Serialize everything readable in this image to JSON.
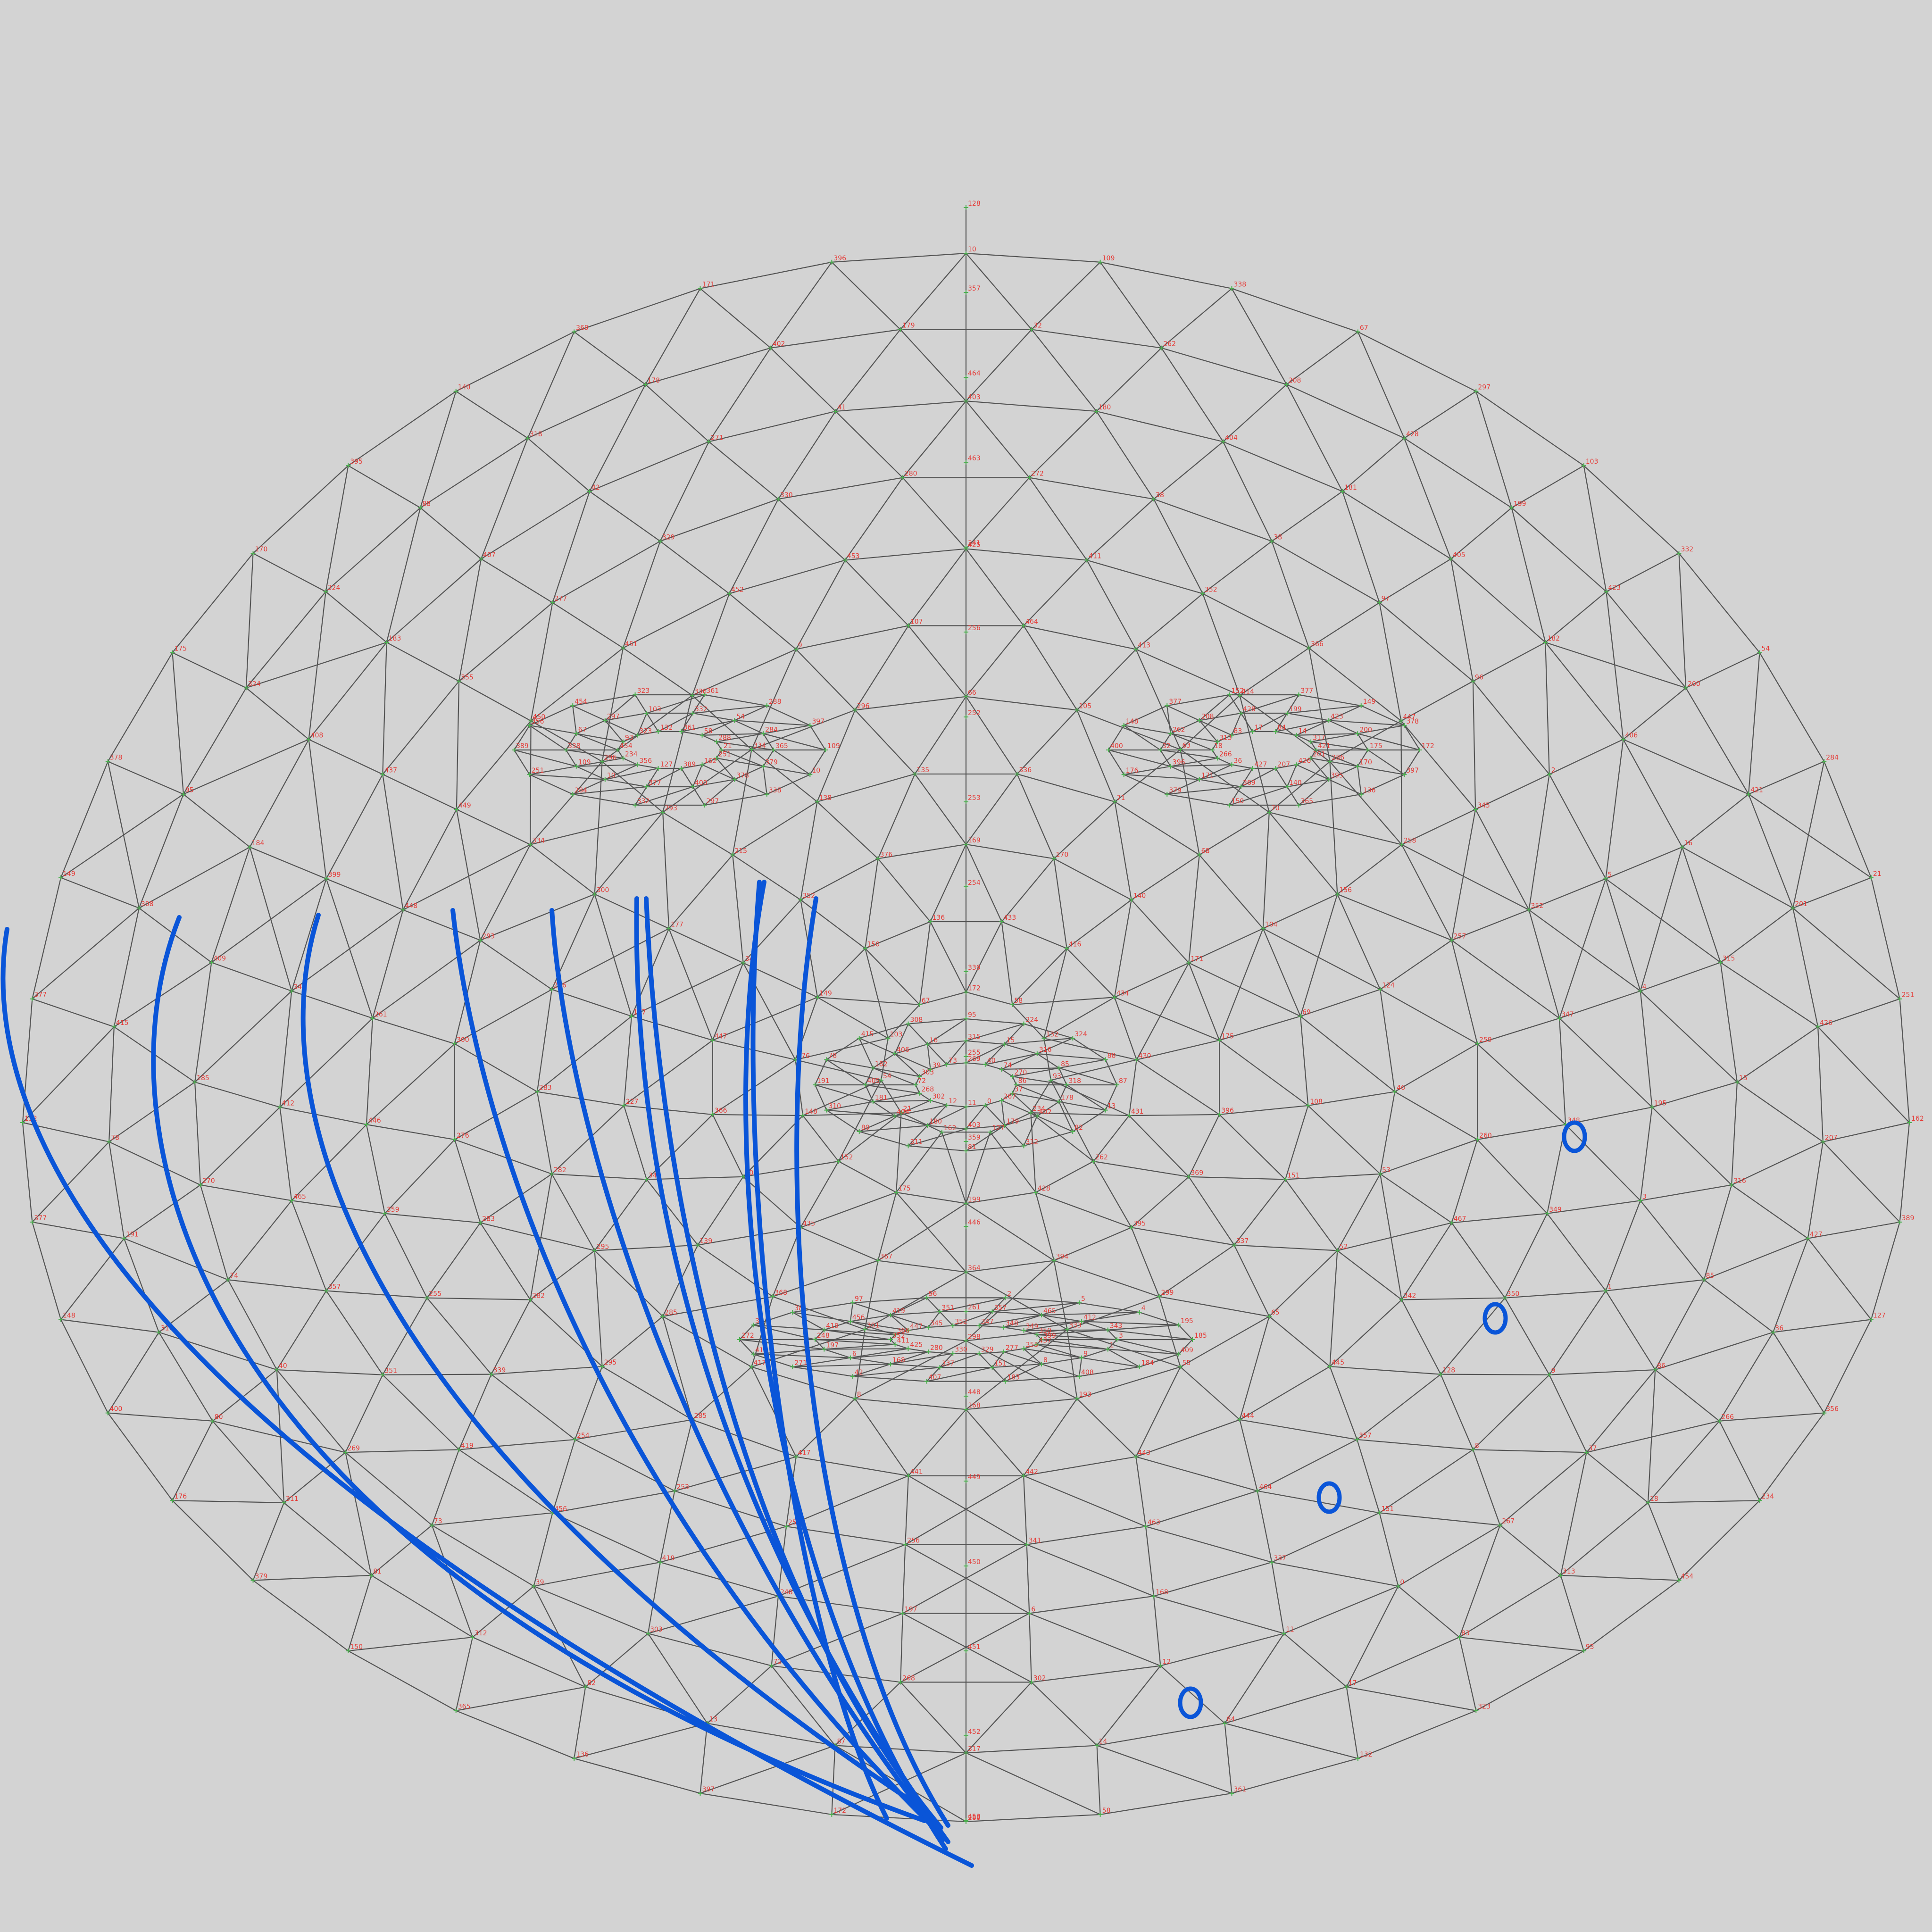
{
  "colors": {
    "background": "#d3d3d3",
    "mesh": "#555555",
    "label": "#e53935",
    "node": "#4caf50",
    "annotation": "#0a55d8"
  },
  "mesh": {
    "labels": [
      "10",
      "109",
      "338",
      "67",
      "297",
      "103",
      "332",
      "54",
      "284",
      "21",
      "251",
      "162",
      "389",
      "127",
      "356",
      "234",
      "454",
      "93",
      "323",
      "132",
      "361",
      "58",
      "288",
      "172",
      "397",
      "136",
      "365",
      "150",
      "379",
      "176",
      "400",
      "148",
      "377",
      "152",
      "377",
      "149",
      "378",
      "175",
      "170",
      "395",
      "140",
      "369",
      "171",
      "396",
      "32",
      "262",
      "208",
      "428",
      "199",
      "423",
      "200",
      "421",
      "201",
      "426",
      "207",
      "427",
      "36",
      "266",
      "18",
      "313",
      "83",
      "17",
      "84",
      "14",
      "317",
      "87",
      "13",
      "82",
      "312",
      "81",
      "311",
      "80",
      "310",
      "191",
      "78",
      "415",
      "308",
      "95",
      "324",
      "324",
      "88",
      "318",
      "178",
      "402",
      "179",
      "403",
      "180",
      "404",
      "181",
      "405",
      "182",
      "406",
      "16",
      "315",
      "15",
      "316",
      "85",
      "86",
      "37",
      "267",
      "0",
      "11",
      "12",
      "302",
      "268",
      "72",
      "303",
      "39",
      "73",
      "269",
      "40",
      "74",
      "270",
      "185",
      "409",
      "184",
      "408",
      "183",
      "407",
      "42",
      "271",
      "41",
      "272",
      "38",
      "38",
      "97",
      "96",
      "2",
      "5",
      "4",
      "195",
      "3",
      "1",
      "9",
      "8",
      "151",
      "337",
      "168",
      "6",
      "197",
      "248",
      "419",
      "456",
      "419",
      "351",
      "357",
      "465",
      "412",
      "343",
      "399",
      "437",
      "355",
      "277",
      "329",
      "330",
      "280",
      "425",
      "411",
      "352",
      "366",
      "447",
      "345",
      "352",
      "347",
      "348",
      "349",
      "350",
      "128",
      "357",
      "464",
      "463",
      "341",
      "256",
      "252",
      "253",
      "254",
      "339",
      "255",
      "359",
      "446",
      "261",
      "448",
      "449",
      "450",
      "451",
      "452",
      "453",
      "464",
      "413",
      "414",
      "286",
      "258",
      "257",
      "259",
      "260",
      "467",
      "342",
      "445",
      "444",
      "443",
      "442",
      "441",
      "417",
      "285",
      "295",
      "282",
      "283",
      "276",
      "300",
      "293",
      "334",
      "296",
      "336",
      "9",
      "107",
      "66",
      "105",
      "63",
      "70",
      "156",
      "124",
      "46",
      "53",
      "52",
      "65",
      "55",
      "193",
      "168",
      "8",
      "417",
      "285",
      "295",
      "282",
      "283",
      "276",
      "300",
      "293",
      "334",
      "296",
      "336",
      "71",
      "68",
      "104",
      "69",
      "108",
      "151",
      "337",
      "299",
      "333",
      "298",
      "301",
      "368",
      "139",
      "34",
      "227",
      "137",
      "177",
      "215",
      "138",
      "135",
      "169",
      "170",
      "140",
      "171",
      "175",
      "396",
      "369",
      "395",
      "394",
      "364",
      "367",
      "435",
      "401",
      "366",
      "447",
      "345",
      "352",
      "376",
      "433",
      "416",
      "434",
      "430",
      "431",
      "262",
      "428",
      "199",
      "175",
      "152",
      "148",
      "176",
      "149",
      "150",
      "136",
      "172",
      "58",
      "132",
      "93",
      "234",
      "127",
      "162",
      "21",
      "54",
      "103",
      "67",
      "109",
      "10",
      "338",
      "297",
      "332",
      "284",
      "251",
      "389",
      "356",
      "454",
      "323",
      "361",
      "288",
      "397",
      "365",
      "379",
      "378",
      "400",
      "377"
    ],
    "label_count": 468
  },
  "annotations": {
    "curves": 10,
    "circles": 4
  }
}
